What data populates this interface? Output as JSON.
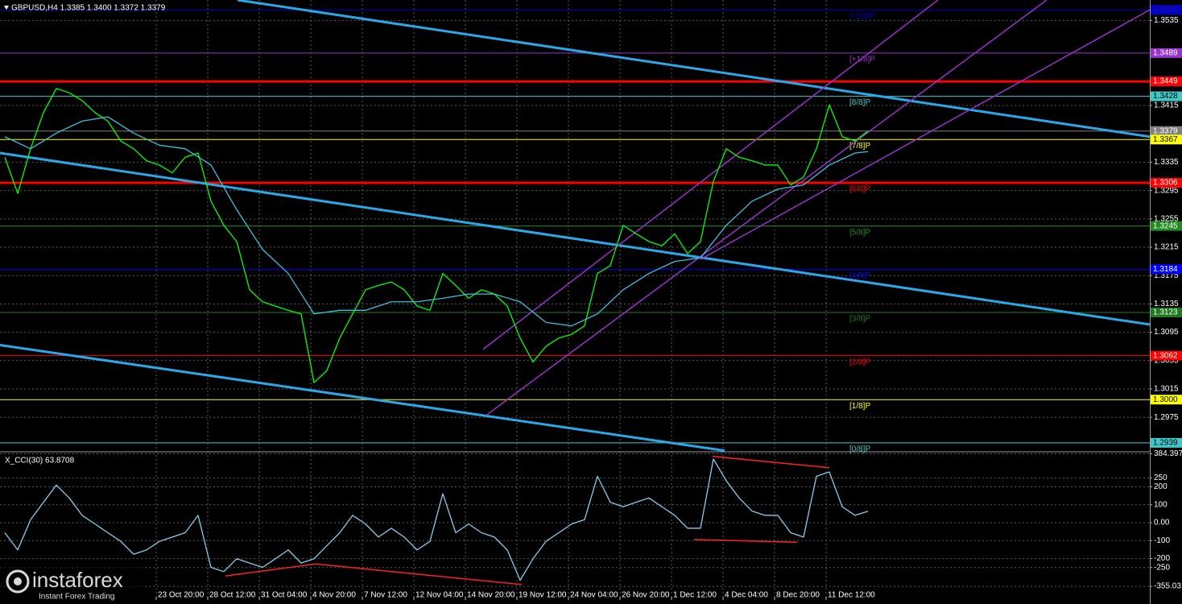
{
  "chart_data": [
    {
      "type": "line",
      "title": "GBPUSD,H4 1.3385 1.3400 1.3372 1.3379",
      "xlim": [
        -0.5,
        356.5
      ],
      "ylim": [
        1.29275,
        1.35639
      ],
      "grid": true,
      "yticks": [
        1.3535,
        1.3415,
        1.3335,
        1.3295,
        1.3255,
        1.3215,
        1.3175,
        1.3135,
        1.3095,
        1.3055,
        1.3015,
        1.2975
      ],
      "levels": [
        {
          "price": 1.355,
          "label": "1.3550",
          "murrey": "[+2/8]P",
          "color": "#0000c8",
          "text_color": "#1a1a8c"
        },
        {
          "price": 1.3489,
          "label": "1.3489",
          "murrey": "[+1/8]P",
          "color": "#9932cc",
          "text_color": "#ffffff"
        },
        {
          "price": 1.3449,
          "label": "1.3449",
          "color": "#ff0000",
          "text_color": "#ffffff",
          "thick": true
        },
        {
          "price": 1.3428,
          "label": "1.3428",
          "murrey": "[8/8]P",
          "color": "#40c8c8",
          "text_color": "#000000"
        },
        {
          "price": 1.3379,
          "label": "1.3379",
          "color": "#808080",
          "text_color": "#ffffff"
        },
        {
          "price": 1.3367,
          "label": "1.3367",
          "murrey": "[7/8]P",
          "color": "#ffff00",
          "text_color": "#000000"
        },
        {
          "price": 1.3306,
          "label": "1.3306",
          "murrey": "[6/8]P",
          "color": "#ff0000",
          "text_color": "#ffffff",
          "thick": true
        },
        {
          "price": 1.3245,
          "label": "1.3245",
          "murrey": "[5/8]P",
          "color": "#228b22",
          "text_color": "#ffffff"
        },
        {
          "price": 1.3184,
          "label": "1.3184",
          "murrey": "[4/8]P",
          "color": "#0000ff",
          "text_color": "#ffffff"
        },
        {
          "price": 1.3123,
          "label": "1.3123",
          "murrey": "[3/8]P",
          "color": "#1f7a1f",
          "text_color": "#ffffff"
        },
        {
          "price": 1.3062,
          "label": "1.3062",
          "murrey": "[2/8]P",
          "color": "#ff0000",
          "text_color": "#ffffff"
        },
        {
          "price": 1.3,
          "label": "1.3000",
          "murrey": "[1/8]P",
          "color": "#ffff00",
          "text_color": "#000000"
        },
        {
          "price": 1.2939,
          "label": "1.2939",
          "murrey": "[0/8]P",
          "color": "#40c8c8",
          "text_color": "#000000"
        }
      ],
      "trendlines": [
        {
          "color": "#2aa8e8",
          "thick": true,
          "x": [
            73.25,
            356.5
          ],
          "values": [
            1.35639,
            1.3371
          ]
        },
        {
          "color": "#2aa8e8",
          "thick": true,
          "x": [
            -0.5,
            356.5
          ],
          "values": [
            1.3348,
            1.3106
          ]
        },
        {
          "color": "#2aa8e8",
          "thick": true,
          "x": [
            -0.5,
            224.5
          ],
          "values": [
            1.3077,
            1.2928
          ]
        },
        {
          "color": "#9932cc",
          "x": [
            149.5,
            290.75
          ],
          "values": [
            1.3071,
            1.3564
          ]
        },
        {
          "color": "#9932cc",
          "x": [
            150.5,
            324.5
          ],
          "values": [
            1.2978,
            1.3564
          ]
        },
        {
          "color": "#9932cc",
          "x": [
            217,
            356.5
          ],
          "values": [
            1.3198,
            1.355
          ]
        }
      ],
      "series": [
        {
          "color": "#00ff00",
          "x": [
            1,
            5,
            9,
            13,
            17,
            21,
            25,
            29,
            33,
            37,
            41,
            45,
            49,
            53,
            57,
            61,
            65,
            69,
            73,
            77,
            81,
            85,
            89,
            93,
            97,
            101,
            105,
            109,
            113,
            117,
            121,
            125,
            129,
            133,
            137,
            141,
            145,
            149,
            153,
            157,
            161,
            165,
            169,
            173,
            177,
            181,
            185,
            189,
            193,
            197,
            201,
            205,
            209,
            213,
            217,
            221,
            225,
            229,
            233,
            237,
            241,
            245,
            249,
            253,
            257,
            261,
            265,
            269
          ],
          "values": [
            1.3342,
            1.3291,
            1.3354,
            1.3405,
            1.3439,
            1.3433,
            1.3422,
            1.3405,
            1.3393,
            1.3365,
            1.3354,
            1.3337,
            1.3331,
            1.332,
            1.3342,
            1.3348,
            1.328,
            1.3246,
            1.3223,
            1.3155,
            1.3138,
            1.3132,
            1.3126,
            1.3121,
            1.3024,
            1.3041,
            1.3087,
            1.3121,
            1.3155,
            1.3161,
            1.3166,
            1.3155,
            1.3132,
            1.3126,
            1.3178,
            1.3161,
            1.3143,
            1.3155,
            1.3149,
            1.3132,
            1.3087,
            1.3053,
            1.3075,
            1.3087,
            1.3092,
            1.3104,
            1.3178,
            1.3189,
            1.3246,
            1.3234,
            1.3223,
            1.3217,
            1.3234,
            1.3206,
            1.3223,
            1.3308,
            1.3354,
            1.3342,
            1.3337,
            1.3331,
            1.3331,
            1.3303,
            1.3314,
            1.3354,
            1.3416,
            1.3371,
            1.3365,
            1.3379
          ]
        },
        {
          "color": "#3cc0e0",
          "x": [
            1,
            9,
            17,
            25,
            33,
            41,
            49,
            57,
            65,
            73,
            81,
            89,
            97,
            105,
            113,
            121,
            129,
            137,
            145,
            153,
            161,
            169,
            177,
            185,
            193,
            201,
            209,
            217,
            225,
            233,
            241,
            249,
            257,
            265,
            269
          ],
          "values": [
            1.3371,
            1.3354,
            1.3376,
            1.3393,
            1.3399,
            1.3376,
            1.3359,
            1.3354,
            1.3331,
            1.3268,
            1.3212,
            1.3178,
            1.3121,
            1.3126,
            1.3126,
            1.3138,
            1.3138,
            1.3143,
            1.3149,
            1.3149,
            1.3138,
            1.3109,
            1.3104,
            1.3121,
            1.3155,
            1.3178,
            1.3195,
            1.32,
            1.3246,
            1.328,
            1.3297,
            1.3303,
            1.3331,
            1.3348,
            1.335
          ]
        }
      ]
    },
    {
      "type": "line",
      "title": "X_CCI(30) 63.8708",
      "xlim": [
        -0.5,
        356.5
      ],
      "ylim": [
        -431,
        391
      ],
      "grid": true,
      "yticks": [
        384.3971,
        250,
        200,
        100,
        {
          "value": 0,
          "label": "0.00"
        },
        -100,
        -200,
        -250,
        -355.0319
      ],
      "xticks": [
        {
          "value": 48,
          "label": "23 Oct 20:00"
        },
        {
          "value": 64,
          "label": "28 Oct 12:00"
        },
        {
          "value": 80,
          "label": "31 Oct 04:00"
        },
        {
          "value": 96,
          "label": "4 Nov 20:00"
        },
        {
          "value": 112,
          "label": "7 Nov 12:00"
        },
        {
          "value": 128,
          "label": "12 Nov 04:00"
        },
        {
          "value": 144,
          "label": "14 Nov 20:00"
        },
        {
          "value": 160,
          "label": "19 Nov 12:00"
        },
        {
          "value": 176,
          "label": "24 Nov 04:00"
        },
        {
          "value": 192,
          "label": "26 Nov 20:00"
        },
        {
          "value": 208,
          "label": "1 Dec 12:00"
        },
        {
          "value": 224,
          "label": "4 Dec 04:00"
        },
        {
          "value": 240,
          "label": "8 Dec 20:00"
        },
        {
          "value": 256,
          "label": "11 Dec 12:00"
        }
      ],
      "trendlines": [
        {
          "color": "#ff2020",
          "x": [
            69.5,
            97.5
          ],
          "values": [
            -297,
            -230
          ]
        },
        {
          "color": "#ff2020",
          "x": [
            97.5,
            161.5
          ],
          "values": [
            -230,
            -345
          ]
        },
        {
          "color": "#ff2020",
          "x": [
            220.75,
            257
          ],
          "values": [
            370,
            307
          ]
        },
        {
          "color": "#ff2020",
          "x": [
            215,
            247
          ],
          "values": [
            -94,
            -109
          ]
        }
      ],
      "series": [
        {
          "color": "#87ceeb",
          "x": [
            1,
            5,
            9,
            13,
            17,
            21,
            25,
            29,
            33,
            37,
            41,
            45,
            49,
            53,
            57,
            61,
            65,
            69,
            73,
            77,
            81,
            85,
            89,
            93,
            97,
            101,
            105,
            109,
            113,
            117,
            121,
            125,
            129,
            133,
            137,
            141,
            145,
            149,
            153,
            157,
            161,
            165,
            169,
            173,
            177,
            181,
            185,
            189,
            193,
            197,
            201,
            205,
            209,
            213,
            217,
            221,
            225,
            229,
            233,
            237,
            241,
            245,
            249,
            253,
            257,
            261,
            265,
            269
          ],
          "values": [
            -56,
            -152,
            17,
            114,
            210,
            138,
            41,
            -7,
            -56,
            -104,
            -176,
            -152,
            -104,
            -80,
            -56,
            41,
            -249,
            -273,
            -201,
            -225,
            -249,
            -201,
            -152,
            -225,
            -201,
            -128,
            -56,
            41,
            -7,
            -80,
            -31,
            -80,
            -152,
            -104,
            162,
            -56,
            -7,
            -56,
            -80,
            -152,
            -321,
            -201,
            -104,
            -56,
            -7,
            17,
            259,
            114,
            89,
            114,
            138,
            89,
            41,
            -31,
            -31,
            355,
            234,
            138,
            65,
            41,
            41,
            -56,
            -80,
            259,
            283,
            89,
            41,
            63.8708
          ]
        }
      ]
    }
  ],
  "watermark": {
    "brand": "instaforex",
    "tagline": "Instant Forex Trading"
  }
}
